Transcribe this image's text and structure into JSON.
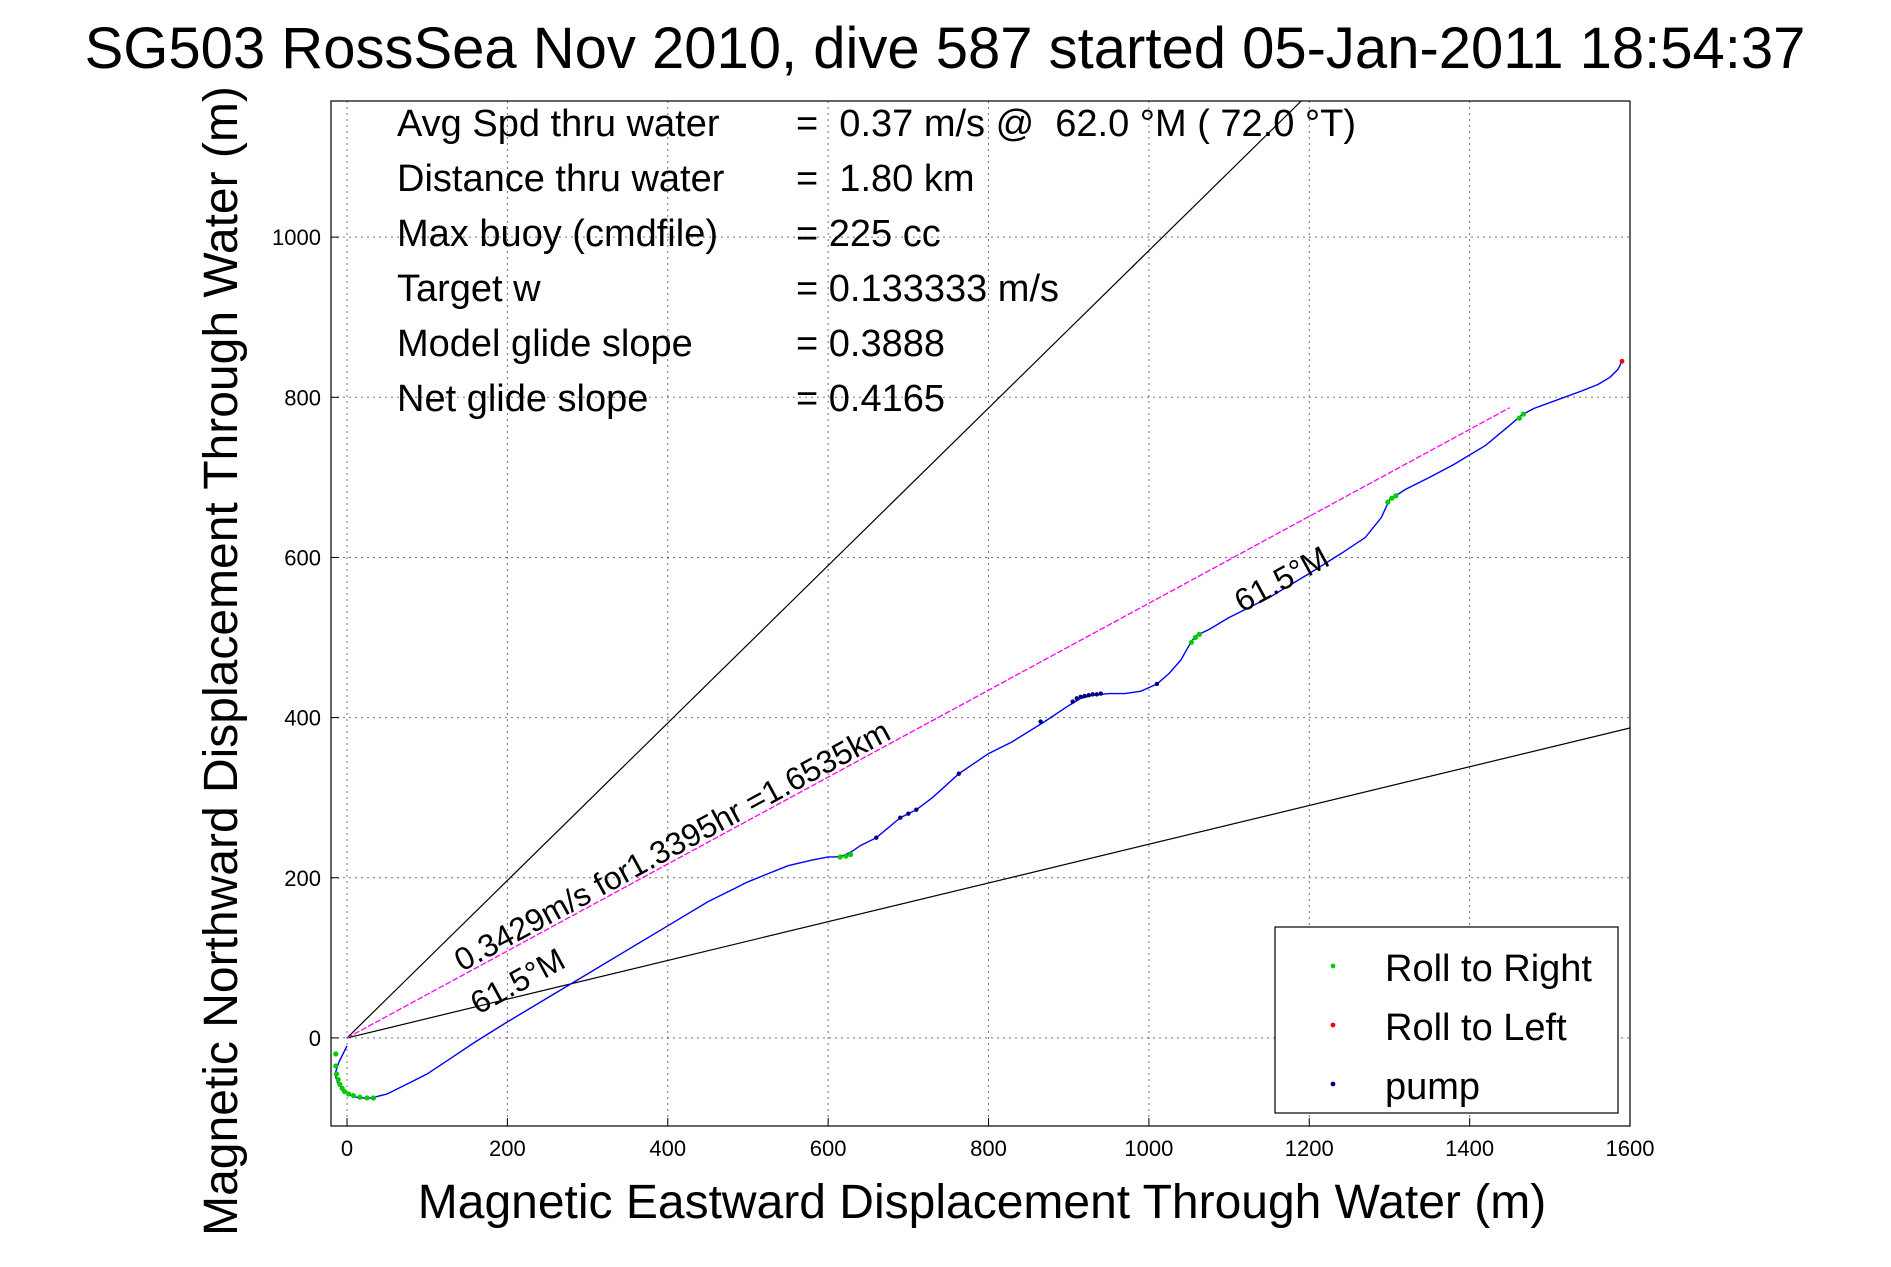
{
  "chart_data": {
    "type": "line",
    "title": "SG503 RossSea Nov 2010, dive 587 started 05-Jan-2011 18:54:37",
    "xlabel": "Magnetic Eastward Displacement Through Water (m)",
    "ylabel": "Magnetic Northward Displacement Through Water (m)",
    "xlim": [
      -20,
      1600
    ],
    "ylim": [
      -110,
      1170
    ],
    "xticks": [
      "0",
      "200",
      "400",
      "600",
      "800",
      "1000",
      "1200",
      "1400",
      "1600"
    ],
    "yticks": [
      "0",
      "200",
      "400",
      "600",
      "800",
      "1000"
    ],
    "grid": true,
    "stats": [
      {
        "label": "Avg Spd thru water",
        "value": "=  0.37 m/s @  62.0 °M ( 72.0 °T)"
      },
      {
        "label": "Distance thru water",
        "value": "=  1.80 km"
      },
      {
        "label": "Max buoy (cmdfile)",
        "value": "= 225 cc"
      },
      {
        "label": "Target w",
        "value": "= 0.133333 m/s"
      },
      {
        "label": "Model glide slope",
        "value": "= 0.3888"
      },
      {
        "label": "Net glide slope",
        "value": "= 0.4165"
      }
    ],
    "annotations": {
      "speed_label": "0.3429m/s for1.3395hr =1.6535km",
      "heading_label_lower": "61.5°M",
      "heading_label_upper": "61.5°M"
    },
    "colors": {
      "track": "#0000ff",
      "net_track": "#ff00ff",
      "roll_right": "#00cc00",
      "roll_left": "#ff0000",
      "pump": "#000080",
      "heading_bounds": "#000000"
    },
    "series": [
      {
        "name": "track",
        "x": [
          0,
          -10,
          -15,
          -12,
          -5,
          5,
          15,
          30,
          50,
          80,
          100,
          130,
          160,
          200,
          250,
          300,
          350,
          400,
          450,
          500,
          550,
          580,
          600,
          610,
          620,
          630,
          640,
          660,
          690,
          700,
          710,
          730,
          763,
          800,
          830,
          870,
          900,
          915,
          930,
          950,
          970,
          990,
          1010,
          1025,
          1040,
          1050,
          1058,
          1075,
          1100,
          1150,
          1200,
          1240,
          1270,
          1290,
          1300,
          1320,
          1350,
          1380,
          1420,
          1450,
          1465,
          1480,
          1510,
          1540,
          1560,
          1575,
          1585,
          1590
        ],
        "y": [
          -10,
          -30,
          -45,
          -55,
          -65,
          -72,
          -75,
          -75,
          -70,
          -55,
          -45,
          -25,
          -5,
          20,
          50,
          80,
          110,
          140,
          170,
          195,
          215,
          222,
          226,
          226,
          228,
          233,
          240,
          250,
          275,
          280,
          285,
          300,
          330,
          355,
          370,
          395,
          415,
          424,
          428,
          430,
          430,
          433,
          442,
          455,
          472,
          490,
          502,
          510,
          525,
          550,
          580,
          605,
          625,
          650,
          672,
          685,
          700,
          716,
          740,
          765,
          778,
          786,
          797,
          808,
          816,
          825,
          835,
          845
        ]
      },
      {
        "name": "net_track",
        "x": [
          0,
          1450
        ],
        "y": [
          0,
          787
        ]
      }
    ],
    "heading_bounds": [
      {
        "x": [
          0,
          1190
        ],
        "y": [
          0,
          1170
        ]
      },
      {
        "x": [
          0,
          1600
        ],
        "y": [
          0,
          387
        ]
      }
    ],
    "markers": {
      "roll_right": {
        "x": [
          -14,
          -14,
          -13,
          -11,
          -9,
          -6,
          -3,
          2,
          8,
          16,
          25,
          33,
          615,
          622,
          628,
          1053,
          1058,
          1063,
          1298,
          1303,
          1308,
          1462,
          1467
        ],
        "y": [
          -20,
          -35,
          -45,
          -52,
          -58,
          -63,
          -67,
          -70,
          -72,
          -74,
          -75,
          -75,
          226,
          227,
          229,
          494,
          500,
          504,
          669,
          674,
          677,
          774,
          779
        ]
      },
      "roll_left": {
        "x": [
          1590
        ],
        "y": [
          845
        ]
      },
      "pump": {
        "x": [
          660,
          690,
          700,
          710,
          763,
          865,
          905,
          910,
          915,
          920,
          925,
          930,
          935,
          940,
          1010
        ],
        "y": [
          250,
          275,
          280,
          285,
          330,
          395,
          420,
          424,
          426,
          427,
          428,
          429,
          429,
          430,
          442
        ]
      }
    },
    "legend": {
      "position": "bottom-right",
      "entries": [
        "Roll to Right",
        "Roll to Left",
        "pump"
      ]
    }
  }
}
